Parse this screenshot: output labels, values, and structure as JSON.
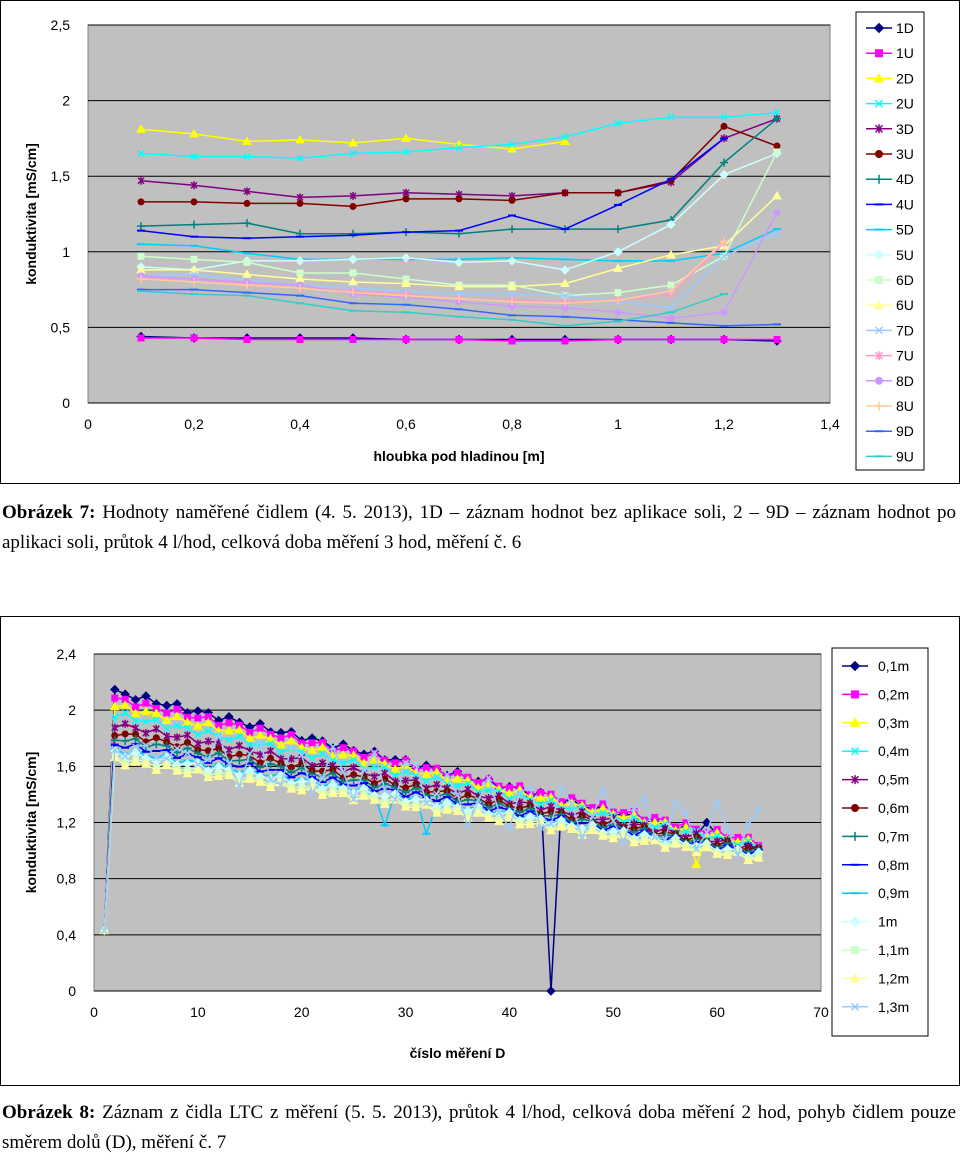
{
  "charts": [
    {
      "type": "line",
      "xlabel": "hloubka pod hladinou [m]",
      "ylabel": "konduktivita [mS/cm]",
      "xlim": [
        0,
        1.4
      ],
      "ylim": [
        0,
        2.5
      ],
      "xticks": [
        0,
        0.2,
        0.4,
        0.6,
        0.8,
        1,
        1.2,
        1.4
      ],
      "xtick_labels": [
        "0",
        "0,2",
        "0,4",
        "0,6",
        "0,8",
        "1",
        "1,2",
        "1,4"
      ],
      "yticks": [
        0,
        0.5,
        1,
        1.5,
        2,
        2.5
      ],
      "ytick_labels": [
        "0",
        "0,5",
        "1",
        "1,5",
        "2",
        "2,5"
      ],
      "grid": "horizontal",
      "legend": "right",
      "series": [
        {
          "name": "1D",
          "color": "#000080",
          "marker": "diamond",
          "x": [
            0.1,
            0.2,
            0.3,
            0.4,
            0.5,
            0.6,
            0.7,
            0.8,
            0.9,
            1.0,
            1.1,
            1.2,
            1.3
          ],
          "values": [
            0.44,
            0.43,
            0.43,
            0.43,
            0.43,
            0.42,
            0.42,
            0.42,
            0.42,
            0.42,
            0.42,
            0.42,
            0.41
          ]
        },
        {
          "name": "1U",
          "color": "#ff00ff",
          "marker": "square",
          "x": [
            0.1,
            0.2,
            0.3,
            0.4,
            0.5,
            0.6,
            0.7,
            0.8,
            0.9,
            1.0,
            1.1,
            1.2,
            1.3
          ],
          "values": [
            0.43,
            0.43,
            0.42,
            0.42,
            0.42,
            0.42,
            0.42,
            0.41,
            0.41,
            0.42,
            0.42,
            0.42,
            0.42
          ]
        },
        {
          "name": "2D",
          "color": "#ffff00",
          "marker": "triangle",
          "x": [
            0.1,
            0.2,
            0.3,
            0.4,
            0.5,
            0.6,
            0.7,
            0.8,
            0.9
          ],
          "values": [
            1.81,
            1.78,
            1.73,
            1.74,
            1.72,
            1.75,
            1.71,
            1.68,
            1.73
          ]
        },
        {
          "name": "2U",
          "color": "#00ffff",
          "marker": "x",
          "x": [
            0.1,
            0.2,
            0.3,
            0.4,
            0.5,
            0.6,
            0.7,
            0.8,
            0.9,
            1.0,
            1.1,
            1.2,
            1.3
          ],
          "values": [
            1.65,
            1.63,
            1.63,
            1.62,
            1.65,
            1.66,
            1.69,
            1.71,
            1.76,
            1.85,
            1.89,
            1.89,
            1.92
          ]
        },
        {
          "name": "3D",
          "color": "#800080",
          "marker": "star",
          "x": [
            0.1,
            0.2,
            0.3,
            0.4,
            0.5,
            0.6,
            0.7,
            0.8,
            0.9,
            1.0,
            1.1,
            1.2,
            1.3
          ],
          "values": [
            1.47,
            1.44,
            1.4,
            1.36,
            1.37,
            1.39,
            1.38,
            1.37,
            1.39,
            1.39,
            1.46,
            1.75,
            1.88
          ]
        },
        {
          "name": "3U",
          "color": "#800000",
          "marker": "circle",
          "x": [
            0.1,
            0.2,
            0.3,
            0.4,
            0.5,
            0.6,
            0.7,
            0.8,
            0.9,
            1.0,
            1.1,
            1.2,
            1.3
          ],
          "values": [
            1.33,
            1.33,
            1.32,
            1.32,
            1.3,
            1.35,
            1.35,
            1.34,
            1.39,
            1.39,
            1.47,
            1.83,
            1.7
          ]
        },
        {
          "name": "4D",
          "color": "#008080",
          "marker": "plus",
          "x": [
            0.1,
            0.2,
            0.3,
            0.4,
            0.5,
            0.6,
            0.7,
            0.8,
            0.9,
            1.0,
            1.1,
            1.2,
            1.3
          ],
          "values": [
            1.17,
            1.18,
            1.19,
            1.12,
            1.12,
            1.13,
            1.12,
            1.15,
            1.15,
            1.15,
            1.21,
            1.59,
            1.88
          ]
        },
        {
          "name": "4U",
          "color": "#0000ff",
          "marker": "dash",
          "x": [
            0.1,
            0.2,
            0.3,
            0.4,
            0.5,
            0.6,
            0.7,
            0.8,
            0.9,
            1.0,
            1.1,
            1.2
          ],
          "values": [
            1.14,
            1.1,
            1.09,
            1.1,
            1.11,
            1.13,
            1.14,
            1.24,
            1.15,
            1.31,
            1.48,
            1.75
          ]
        },
        {
          "name": "5D",
          "color": "#00ccff",
          "marker": "dash",
          "x": [
            0.1,
            0.2,
            0.3,
            0.4,
            0.5,
            0.6,
            0.7,
            0.8,
            0.9,
            1.0,
            1.1,
            1.2,
            1.3
          ],
          "values": [
            1.05,
            1.04,
            0.99,
            0.95,
            0.95,
            0.95,
            0.95,
            0.96,
            0.95,
            0.94,
            0.94,
            0.99,
            1.15
          ]
        },
        {
          "name": "5U",
          "color": "#ccffff",
          "marker": "diamond",
          "x": [
            0.1,
            0.2,
            0.3,
            0.4,
            0.5,
            0.6,
            0.7,
            0.8,
            0.9,
            1.0,
            1.1,
            1.2,
            1.3
          ],
          "values": [
            0.9,
            0.88,
            0.94,
            0.94,
            0.95,
            0.96,
            0.93,
            0.94,
            0.88,
            1.0,
            1.18,
            1.51,
            1.65
          ]
        },
        {
          "name": "6D",
          "color": "#ccffcc",
          "marker": "square",
          "x": [
            0.1,
            0.2,
            0.3,
            0.4,
            0.5,
            0.6,
            0.7,
            0.8,
            0.9,
            1.0,
            1.1,
            1.2,
            1.3
          ],
          "values": [
            0.97,
            0.95,
            0.93,
            0.86,
            0.86,
            0.82,
            0.78,
            0.78,
            0.71,
            0.73,
            0.78,
            0.97,
            1.66
          ]
        },
        {
          "name": "6U",
          "color": "#ffff99",
          "marker": "triangle",
          "x": [
            0.1,
            0.2,
            0.3,
            0.4,
            0.5,
            0.6,
            0.7,
            0.8,
            0.9,
            1.0,
            1.1,
            1.2,
            1.3
          ],
          "values": [
            0.88,
            0.88,
            0.85,
            0.82,
            0.8,
            0.79,
            0.77,
            0.77,
            0.79,
            0.89,
            0.98,
            1.04,
            1.37
          ]
        },
        {
          "name": "7D",
          "color": "#99ccff",
          "marker": "x",
          "x": [
            0.1,
            0.2,
            0.3,
            0.4,
            0.5,
            0.6,
            0.7,
            0.8,
            0.9,
            1.0,
            1.1,
            1.2,
            1.3
          ],
          "values": [
            0.84,
            0.85,
            0.81,
            0.78,
            0.76,
            0.74,
            0.72,
            0.72,
            0.71,
            0.67,
            0.63,
            0.97,
            1.12
          ]
        },
        {
          "name": "7U",
          "color": "#ff99cc",
          "marker": "star",
          "x": [
            0.1,
            0.2,
            0.3,
            0.4,
            0.5,
            0.6,
            0.7,
            0.8,
            0.9,
            1.0,
            1.1,
            1.2
          ],
          "values": [
            0.83,
            0.82,
            0.79,
            0.76,
            0.74,
            0.72,
            0.69,
            0.68,
            0.67,
            0.68,
            0.72,
            1.06
          ]
        },
        {
          "name": "8D",
          "color": "#cc99ff",
          "marker": "circle",
          "x": [
            0.1,
            0.2,
            0.3,
            0.4,
            0.5,
            0.6,
            0.7,
            0.8,
            0.9,
            1.0,
            1.1,
            1.2,
            1.3
          ],
          "values": [
            0.84,
            0.82,
            0.8,
            0.78,
            0.72,
            0.7,
            0.67,
            0.64,
            0.63,
            0.6,
            0.56,
            0.6,
            1.26
          ]
        },
        {
          "name": "8U",
          "color": "#ffcc99",
          "marker": "plus",
          "x": [
            0.1,
            0.2,
            0.3,
            0.4,
            0.5,
            0.6,
            0.7,
            0.8,
            0.9,
            1.0,
            1.1,
            1.2
          ],
          "values": [
            0.82,
            0.8,
            0.78,
            0.76,
            0.73,
            0.71,
            0.69,
            0.67,
            0.66,
            0.68,
            0.74,
            1.07
          ]
        },
        {
          "name": "9D",
          "color": "#3366ff",
          "marker": "dash",
          "x": [
            0.1,
            0.2,
            0.3,
            0.4,
            0.5,
            0.6,
            0.7,
            0.8,
            0.9,
            1.0,
            1.1,
            1.2,
            1.3
          ],
          "values": [
            0.75,
            0.75,
            0.73,
            0.71,
            0.66,
            0.65,
            0.62,
            0.58,
            0.57,
            0.55,
            0.53,
            0.51,
            0.52
          ]
        },
        {
          "name": "9U",
          "color": "#33cccc",
          "marker": "dash",
          "x": [
            0.1,
            0.2,
            0.3,
            0.4,
            0.5,
            0.6,
            0.7,
            0.8,
            0.9,
            1.0,
            1.1,
            1.2
          ],
          "values": [
            0.74,
            0.72,
            0.71,
            0.66,
            0.61,
            0.6,
            0.57,
            0.55,
            0.51,
            0.54,
            0.6,
            0.72
          ]
        }
      ]
    },
    {
      "type": "line",
      "xlabel": "číslo měření D",
      "ylabel": "konduktivita [mS/cm]",
      "xlim": [
        0,
        70
      ],
      "ylim": [
        0,
        2.4
      ],
      "xticks": [
        0,
        10,
        20,
        30,
        40,
        50,
        60,
        70
      ],
      "xtick_labels": [
        "0",
        "10",
        "20",
        "30",
        "40",
        "50",
        "60",
        "70"
      ],
      "yticks": [
        0,
        0.4,
        0.8,
        1.2,
        1.6,
        2,
        2.4
      ],
      "ytick_labels": [
        "0",
        "0,4",
        "0,8",
        "1,2",
        "1,6",
        "2",
        "2,4"
      ],
      "grid": "horizontal",
      "legend": "right",
      "n_points": 64,
      "series": [
        {
          "name": "0,1m",
          "color": "#000080",
          "marker": "diamond",
          "start": 2.13,
          "end": 1.02,
          "dips": [
            [
              44,
              0.0
            ],
            [
              59,
              1.2
            ]
          ]
        },
        {
          "name": "0,2m",
          "color": "#ff00ff",
          "marker": "square",
          "start": 2.08,
          "end": 1.06,
          "dips": []
        },
        {
          "name": "0,3m",
          "color": "#ffff00",
          "marker": "triangle",
          "start": 2.03,
          "end": 1.04,
          "dips": [
            [
              58,
              0.9
            ]
          ]
        },
        {
          "name": "0,4m",
          "color": "#00ffff",
          "marker": "x",
          "start": 1.97,
          "end": 1.03,
          "dips": []
        },
        {
          "name": "0,5m",
          "color": "#800080",
          "marker": "star",
          "start": 1.9,
          "end": 1.01,
          "dips": []
        },
        {
          "name": "0,6m",
          "color": "#800000",
          "marker": "circle",
          "start": 1.84,
          "end": 1.0,
          "dips": []
        },
        {
          "name": "0,7m",
          "color": "#008080",
          "marker": "plus",
          "start": 1.8,
          "end": 0.99,
          "dips": []
        },
        {
          "name": "0,8m",
          "color": "#0000ff",
          "marker": "dash",
          "start": 1.76,
          "end": 0.98,
          "dips": []
        },
        {
          "name": "0,9m",
          "color": "#00ccff",
          "marker": "dash",
          "start": 1.72,
          "end": 0.97,
          "dips": [
            [
              28,
              1.18
            ],
            [
              32,
              1.12
            ]
          ]
        },
        {
          "name": "1m",
          "color": "#ccffff",
          "marker": "diamond",
          "start": 1.7,
          "end": 0.97,
          "dips": []
        },
        {
          "name": "1,1m",
          "color": "#ccffcc",
          "marker": "square",
          "start": 1.66,
          "end": 0.95,
          "dips": []
        },
        {
          "name": "1,2m",
          "color": "#ffff99",
          "marker": "triangle",
          "start": 1.64,
          "end": 0.94,
          "dips": []
        },
        {
          "name": "1,3m",
          "color": "#99ccff",
          "marker": "x",
          "start": 1.68,
          "end": 1.18,
          "dips": [],
          "noisy": true
        }
      ]
    }
  ],
  "captions": [
    {
      "label": "Obrázek 7:",
      "text": " Hodnoty naměřené čidlem (4. 5. 2013), 1D – záznam hodnot bez aplikace soli, 2 – 9D – záznam hodnot po aplikaci soli, průtok 4 l/hod, celková doba měření 3 hod, měření č. 6"
    },
    {
      "label": "Obrázek 8:",
      "text": " Záznam z čidla LTC z měření (5. 5. 2013), průtok 4 l/hod, celková doba měření 2 hod, pohyb čidlem pouze směrem dolů (D), měření č. 7"
    }
  ]
}
